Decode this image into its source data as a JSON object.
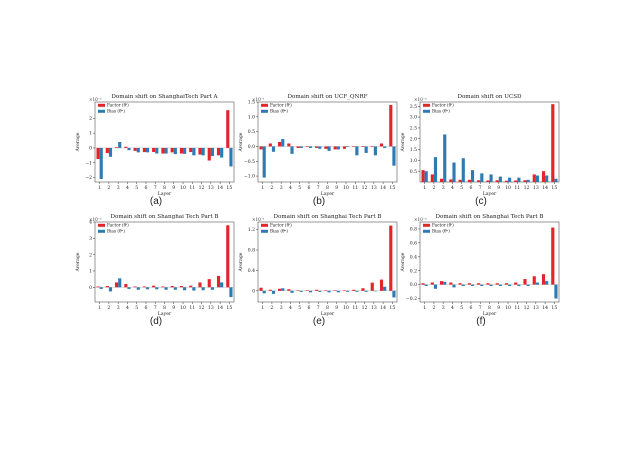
{
  "colors": {
    "factor": "#e3242b",
    "bias": "#2e7bb4"
  },
  "chart_data": [
    {
      "type": "bar",
      "caption": "(a)",
      "title": "Domain shift on ShanghaiTech Part A",
      "xlabel": "Layer",
      "ylabel": "Average",
      "scale_label": "×10⁻²",
      "categories": [
        "1",
        "2",
        "3",
        "4",
        "5",
        "6",
        "7",
        "8",
        "9",
        "10",
        "11",
        "12",
        "13",
        "14",
        "15"
      ],
      "ylim": [
        -2.3,
        3.1
      ],
      "yticks": [
        -2,
        -1,
        0,
        1,
        2
      ],
      "ytick_labels": [
        "−2",
        "−1",
        "0",
        "1",
        "2"
      ],
      "legend_position": "top-left",
      "series": [
        {
          "name": "Factor (θᶠ)",
          "values": [
            -0.75,
            -0.35,
            0.05,
            0.08,
            -0.2,
            -0.28,
            -0.28,
            -0.38,
            -0.3,
            -0.38,
            -0.28,
            -0.45,
            -0.85,
            -0.5,
            2.55
          ]
        },
        {
          "name": "Bias (θᵇ)",
          "values": [
            -2.1,
            -0.6,
            0.4,
            -0.15,
            -0.3,
            -0.3,
            -0.38,
            -0.38,
            -0.42,
            -0.4,
            -0.5,
            -0.5,
            -0.55,
            -0.65,
            -1.25
          ]
        }
      ]
    },
    {
      "type": "bar",
      "caption": "(b)",
      "title": "Domain shift on UCF_QNRF",
      "xlabel": "Layer",
      "ylabel": "Average",
      "scale_label": "×10⁻¹",
      "categories": [
        "1",
        "2",
        "3",
        "4",
        "5",
        "6",
        "7",
        "8",
        "9",
        "10",
        "11",
        "12",
        "13",
        "14",
        "15"
      ],
      "ylim": [
        -1.2,
        1.5
      ],
      "yticks": [
        -1.0,
        -0.5,
        0.0,
        0.5,
        1.0,
        1.5
      ],
      "ytick_labels": [
        "−1.0",
        "−0.5",
        "0.0",
        "0.5",
        "1.0",
        "1.5"
      ],
      "legend_position": "top-left",
      "series": [
        {
          "name": "Factor (θᶠ)",
          "values": [
            -0.1,
            0.1,
            0.15,
            0.1,
            -0.05,
            -0.02,
            -0.05,
            -0.08,
            -0.1,
            -0.08,
            -0.02,
            -0.02,
            -0.02,
            0.1,
            1.4
          ]
        },
        {
          "name": "Bias (θᵇ)",
          "values": [
            -1.05,
            -0.18,
            0.25,
            -0.25,
            -0.05,
            -0.05,
            -0.08,
            -0.15,
            -0.1,
            -0.02,
            -0.3,
            -0.22,
            -0.3,
            -0.05,
            -0.65
          ]
        }
      ]
    },
    {
      "type": "bar",
      "caption": "(c)",
      "title": "Domain shift on UCSD",
      "xlabel": "Layer",
      "ylabel": "Average",
      "scale_label": "×10⁻²",
      "categories": [
        "1",
        "2",
        "3",
        "4",
        "5",
        "6",
        "7",
        "8",
        "9",
        "10",
        "11",
        "12",
        "13",
        "14",
        "15"
      ],
      "ylim": [
        0.0,
        3.7
      ],
      "yticks": [
        0.5,
        1.0,
        1.5,
        2.0,
        2.5,
        3.0,
        3.5
      ],
      "ytick_labels": [
        "0.5",
        "1.0",
        "1.5",
        "2.0",
        "2.5",
        "3.0",
        "3.5"
      ],
      "legend_position": "top-left",
      "series": [
        {
          "name": "Factor (θᶠ)",
          "values": [
            0.55,
            0.35,
            0.15,
            0.12,
            0.1,
            0.1,
            0.08,
            0.07,
            0.08,
            0.06,
            0.07,
            0.08,
            0.35,
            0.5,
            3.6
          ]
        },
        {
          "name": "Bias (θᵇ)",
          "values": [
            0.5,
            1.15,
            2.2,
            0.9,
            1.1,
            0.55,
            0.4,
            0.35,
            0.25,
            0.2,
            0.2,
            0.1,
            0.3,
            0.3,
            0.15
          ]
        }
      ]
    },
    {
      "type": "bar",
      "caption": "(d)",
      "title": "Domain shift on Shanghai Tech Part B",
      "xlabel": "Layer",
      "ylabel": "Average",
      "scale_label": "×10⁻²",
      "categories": [
        "1",
        "2",
        "3",
        "4",
        "5",
        "6",
        "7",
        "8",
        "9",
        "10",
        "11",
        "12",
        "13",
        "14",
        "15"
      ],
      "ylim": [
        -0.9,
        4.0
      ],
      "yticks": [
        0,
        1,
        2,
        3,
        4
      ],
      "ytick_labels": [
        "0",
        "1",
        "2",
        "3",
        "4"
      ],
      "legend_position": "top-left",
      "series": [
        {
          "name": "Factor (θᶠ)",
          "values": [
            0.05,
            0.08,
            0.3,
            0.2,
            0.05,
            0.05,
            0.1,
            0.05,
            0.08,
            0.08,
            0.1,
            0.3,
            0.5,
            0.7,
            3.8
          ]
        },
        {
          "name": "Bias (θᵇ)",
          "values": [
            -0.1,
            -0.25,
            0.55,
            -0.1,
            -0.15,
            -0.12,
            -0.12,
            -0.15,
            -0.15,
            -0.18,
            -0.2,
            -0.18,
            -0.15,
            0.3,
            -0.6
          ]
        }
      ]
    },
    {
      "type": "bar",
      "caption": "(e)",
      "title": "Domain shift on Shanghai Tech Part B",
      "xlabel": "Layer",
      "ylabel": "Average",
      "scale_label": "×10⁻¹",
      "categories": [
        "1",
        "2",
        "3",
        "4",
        "5",
        "6",
        "7",
        "8",
        "9",
        "10",
        "11",
        "12",
        "13",
        "14",
        "15"
      ],
      "ylim": [
        -0.22,
        1.35
      ],
      "yticks": [
        0.0,
        0.4,
        0.8,
        1.2
      ],
      "ytick_labels": [
        "0",
        "0.4",
        "0.8",
        "1.2"
      ],
      "legend_position": "top-left",
      "series": [
        {
          "name": "Factor (θᶠ)",
          "values": [
            0.06,
            0.02,
            0.04,
            0.03,
            0.01,
            0.01,
            0.02,
            0.01,
            0.01,
            0.01,
            0.02,
            0.05,
            0.16,
            0.22,
            1.28
          ]
        },
        {
          "name": "Bias (θᵇ)",
          "values": [
            -0.05,
            -0.06,
            0.05,
            -0.04,
            -0.02,
            -0.03,
            -0.02,
            -0.03,
            -0.03,
            -0.02,
            -0.02,
            -0.02,
            -0.01,
            0.08,
            -0.13
          ]
        }
      ]
    },
    {
      "type": "bar",
      "caption": "(f)",
      "title": "Domain shift on Shanghai Tech Part B",
      "xlabel": "Layer",
      "ylabel": "Average",
      "scale_label": "×10⁻²",
      "categories": [
        "1",
        "2",
        "3",
        "4",
        "5",
        "6",
        "7",
        "8",
        "9",
        "10",
        "11",
        "12",
        "13",
        "14",
        "15"
      ],
      "ylim": [
        -0.25,
        0.9
      ],
      "yticks": [
        -0.2,
        0.0,
        0.2,
        0.4,
        0.6,
        0.8
      ],
      "ytick_labels": [
        "−0.2",
        "0.0",
        "0.2",
        "0.4",
        "0.6",
        "0.8"
      ],
      "legend_position": "top-left",
      "series": [
        {
          "name": "Factor (θᶠ)",
          "values": [
            0.02,
            0.03,
            0.05,
            0.03,
            0.02,
            0.02,
            0.02,
            0.02,
            0.02,
            0.02,
            0.03,
            0.08,
            0.12,
            0.15,
            0.82
          ]
        },
        {
          "name": "Bias (θᵇ)",
          "values": [
            -0.02,
            -0.06,
            0.04,
            -0.04,
            -0.02,
            -0.02,
            -0.02,
            -0.02,
            -0.02,
            -0.02,
            -0.02,
            -0.02,
            0.03,
            0.05,
            -0.2
          ]
        }
      ]
    }
  ]
}
